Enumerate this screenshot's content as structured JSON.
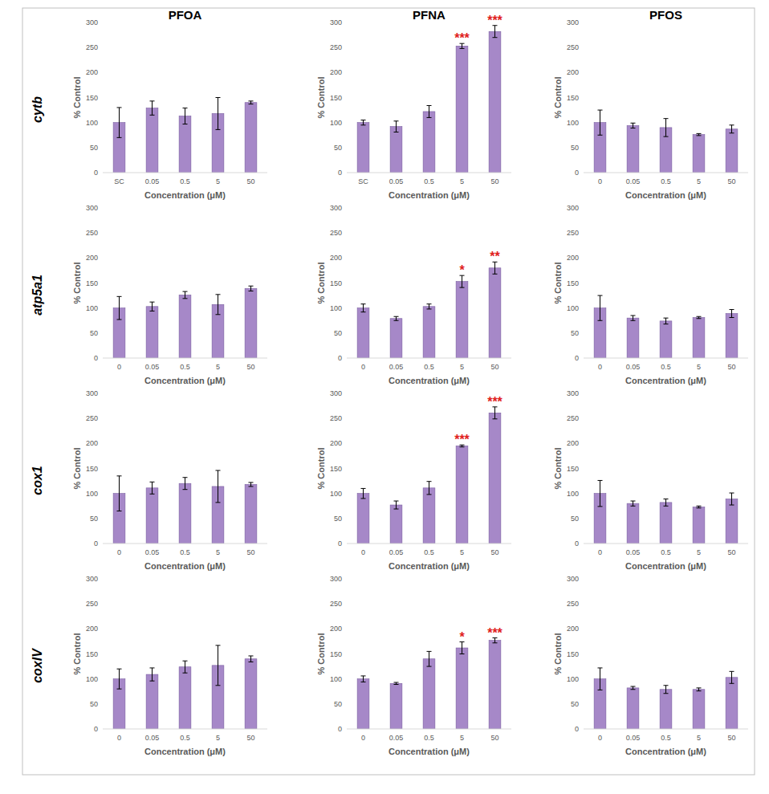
{
  "column_titles": [
    "PFOA",
    "PFNA",
    "PFOS"
  ],
  "row_labels": [
    "cytb",
    "atp5a1",
    "cox1",
    "coxIV"
  ],
  "chart_data": [
    {
      "type": "bar",
      "categories": [
        "SC",
        "0.05",
        "0.5",
        "5",
        "50"
      ],
      "values": [
        100,
        129,
        113,
        118,
        140
      ],
      "errors": [
        30,
        14,
        16,
        32,
        3
      ],
      "significance": [
        null,
        null,
        null,
        null,
        null
      ],
      "color": "#a688c8",
      "xlabel": "Concentration (μM)",
      "ylabel": "% Control",
      "ylim": [
        0,
        300
      ],
      "yticks": [
        0,
        50,
        100,
        150,
        200,
        250,
        300
      ],
      "grid": false
    },
    {
      "type": "bar",
      "categories": [
        "SC",
        "0.05",
        "0.5",
        "5",
        "50"
      ],
      "values": [
        100,
        92,
        122,
        253,
        282
      ],
      "errors": [
        5,
        11,
        12,
        5,
        12
      ],
      "significance": [
        null,
        null,
        null,
        "***",
        "***"
      ],
      "color": "#a688c8",
      "xlabel": "Concentration (μM)",
      "ylabel": "% Control",
      "ylim": [
        0,
        300
      ],
      "yticks": [
        0,
        50,
        100,
        150,
        200,
        250,
        300
      ],
      "grid": false
    },
    {
      "type": "bar",
      "categories": [
        "0",
        "0.05",
        "0.5",
        "5",
        "50"
      ],
      "values": [
        100,
        94,
        90,
        76,
        87
      ],
      "errors": [
        25,
        5,
        18,
        2,
        8
      ],
      "significance": [
        null,
        null,
        null,
        null,
        null
      ],
      "color": "#a688c8",
      "xlabel": "Concentration (μM)",
      "ylabel": "% Control",
      "ylim": [
        0,
        300
      ],
      "yticks": [
        0,
        50,
        100,
        150,
        200,
        250,
        300
      ],
      "grid": false
    },
    {
      "type": "bar",
      "categories": [
        "0",
        "0.05",
        "0.5",
        "5",
        "50"
      ],
      "values": [
        100,
        103,
        126,
        107,
        139
      ],
      "errors": [
        23,
        9,
        7,
        20,
        5
      ],
      "significance": [
        null,
        null,
        null,
        null,
        null
      ],
      "color": "#a688c8",
      "xlabel": "Concentration (μM)",
      "ylabel": "% Control",
      "ylim": [
        0,
        300
      ],
      "yticks": [
        0,
        50,
        100,
        150,
        200,
        250,
        300
      ],
      "grid": false
    },
    {
      "type": "bar",
      "categories": [
        "0",
        "0.05",
        "0.5",
        "5",
        "50"
      ],
      "values": [
        100,
        79,
        103,
        153,
        180
      ],
      "errors": [
        8,
        4,
        5,
        12,
        12
      ],
      "significance": [
        null,
        null,
        null,
        "*",
        "**"
      ],
      "color": "#a688c8",
      "xlabel": "Concentration (μM)",
      "ylabel": "% Control",
      "ylim": [
        0,
        300
      ],
      "yticks": [
        0,
        50,
        100,
        150,
        200,
        250,
        300
      ],
      "grid": false
    },
    {
      "type": "bar",
      "categories": [
        "0",
        "0.05",
        "0.5",
        "5",
        "50"
      ],
      "values": [
        100,
        80,
        74,
        81,
        89
      ],
      "errors": [
        25,
        5,
        6,
        2,
        8
      ],
      "significance": [
        null,
        null,
        null,
        null,
        null
      ],
      "color": "#a688c8",
      "xlabel": "Concentration (μM)",
      "ylabel": "% Control",
      "ylim": [
        0,
        300
      ],
      "yticks": [
        0,
        50,
        100,
        150,
        200,
        250,
        300
      ],
      "grid": false
    },
    {
      "type": "bar",
      "categories": [
        "0",
        "0.05",
        "0.5",
        "5",
        "50"
      ],
      "values": [
        100,
        111,
        120,
        114,
        118
      ],
      "errors": [
        35,
        12,
        12,
        32,
        4
      ],
      "significance": [
        null,
        null,
        null,
        null,
        null
      ],
      "color": "#a688c8",
      "xlabel": "Concentration (μM)",
      "ylabel": "% Control",
      "ylim": [
        0,
        300
      ],
      "yticks": [
        0,
        50,
        100,
        150,
        200,
        250,
        300
      ],
      "grid": false
    },
    {
      "type": "bar",
      "categories": [
        "0",
        "0.05",
        "0.5",
        "5",
        "50"
      ],
      "values": [
        100,
        77,
        111,
        195,
        261
      ],
      "errors": [
        10,
        8,
        13,
        2,
        12
      ],
      "significance": [
        null,
        null,
        null,
        "***",
        "***"
      ],
      "color": "#a688c8",
      "xlabel": "Concentration (μM)",
      "ylabel": "% Control",
      "ylim": [
        0,
        300
      ],
      "yticks": [
        0,
        50,
        100,
        150,
        200,
        250,
        300
      ],
      "grid": false
    },
    {
      "type": "bar",
      "categories": [
        "0",
        "0.05",
        "0.5",
        "5",
        "50"
      ],
      "values": [
        100,
        80,
        82,
        73,
        89
      ],
      "errors": [
        26,
        5,
        7,
        2,
        12
      ],
      "significance": [
        null,
        null,
        null,
        null,
        null
      ],
      "color": "#a688c8",
      "xlabel": "Concentration (μM)",
      "ylabel": "% Control",
      "ylim": [
        0,
        300
      ],
      "yticks": [
        0,
        50,
        100,
        150,
        200,
        250,
        300
      ],
      "grid": false
    },
    {
      "type": "bar",
      "categories": [
        "0",
        "0.05",
        "0.5",
        "5",
        "50"
      ],
      "values": [
        100,
        109,
        124,
        127,
        140
      ],
      "errors": [
        20,
        13,
        12,
        40,
        6
      ],
      "significance": [
        null,
        null,
        null,
        null,
        null
      ],
      "color": "#a688c8",
      "xlabel": "Concentration (μM)",
      "ylabel": "% Control",
      "ylim": [
        0,
        300
      ],
      "yticks": [
        0,
        50,
        100,
        150,
        200,
        250,
        300
      ],
      "grid": false
    },
    {
      "type": "bar",
      "categories": [
        "0",
        "0.05",
        "0.5",
        "5",
        "50"
      ],
      "values": [
        100,
        91,
        140,
        162,
        177
      ],
      "errors": [
        6,
        2,
        15,
        12,
        5
      ],
      "significance": [
        null,
        null,
        null,
        "*",
        "***"
      ],
      "color": "#a688c8",
      "xlabel": "Concentration (μM)",
      "ylabel": "% Control",
      "ylim": [
        0,
        300
      ],
      "yticks": [
        0,
        50,
        100,
        150,
        200,
        250,
        300
      ],
      "grid": false
    },
    {
      "type": "bar",
      "categories": [
        "0",
        "0.05",
        "0.5",
        "5",
        "50"
      ],
      "values": [
        100,
        82,
        79,
        79,
        103
      ],
      "errors": [
        22,
        3,
        8,
        3,
        12
      ],
      "significance": [
        null,
        null,
        null,
        null,
        null
      ],
      "color": "#a688c8",
      "xlabel": "Concentration (μM)",
      "ylabel": "% Control",
      "ylim": [
        0,
        300
      ],
      "yticks": [
        0,
        50,
        100,
        150,
        200,
        250,
        300
      ],
      "grid": false
    }
  ]
}
